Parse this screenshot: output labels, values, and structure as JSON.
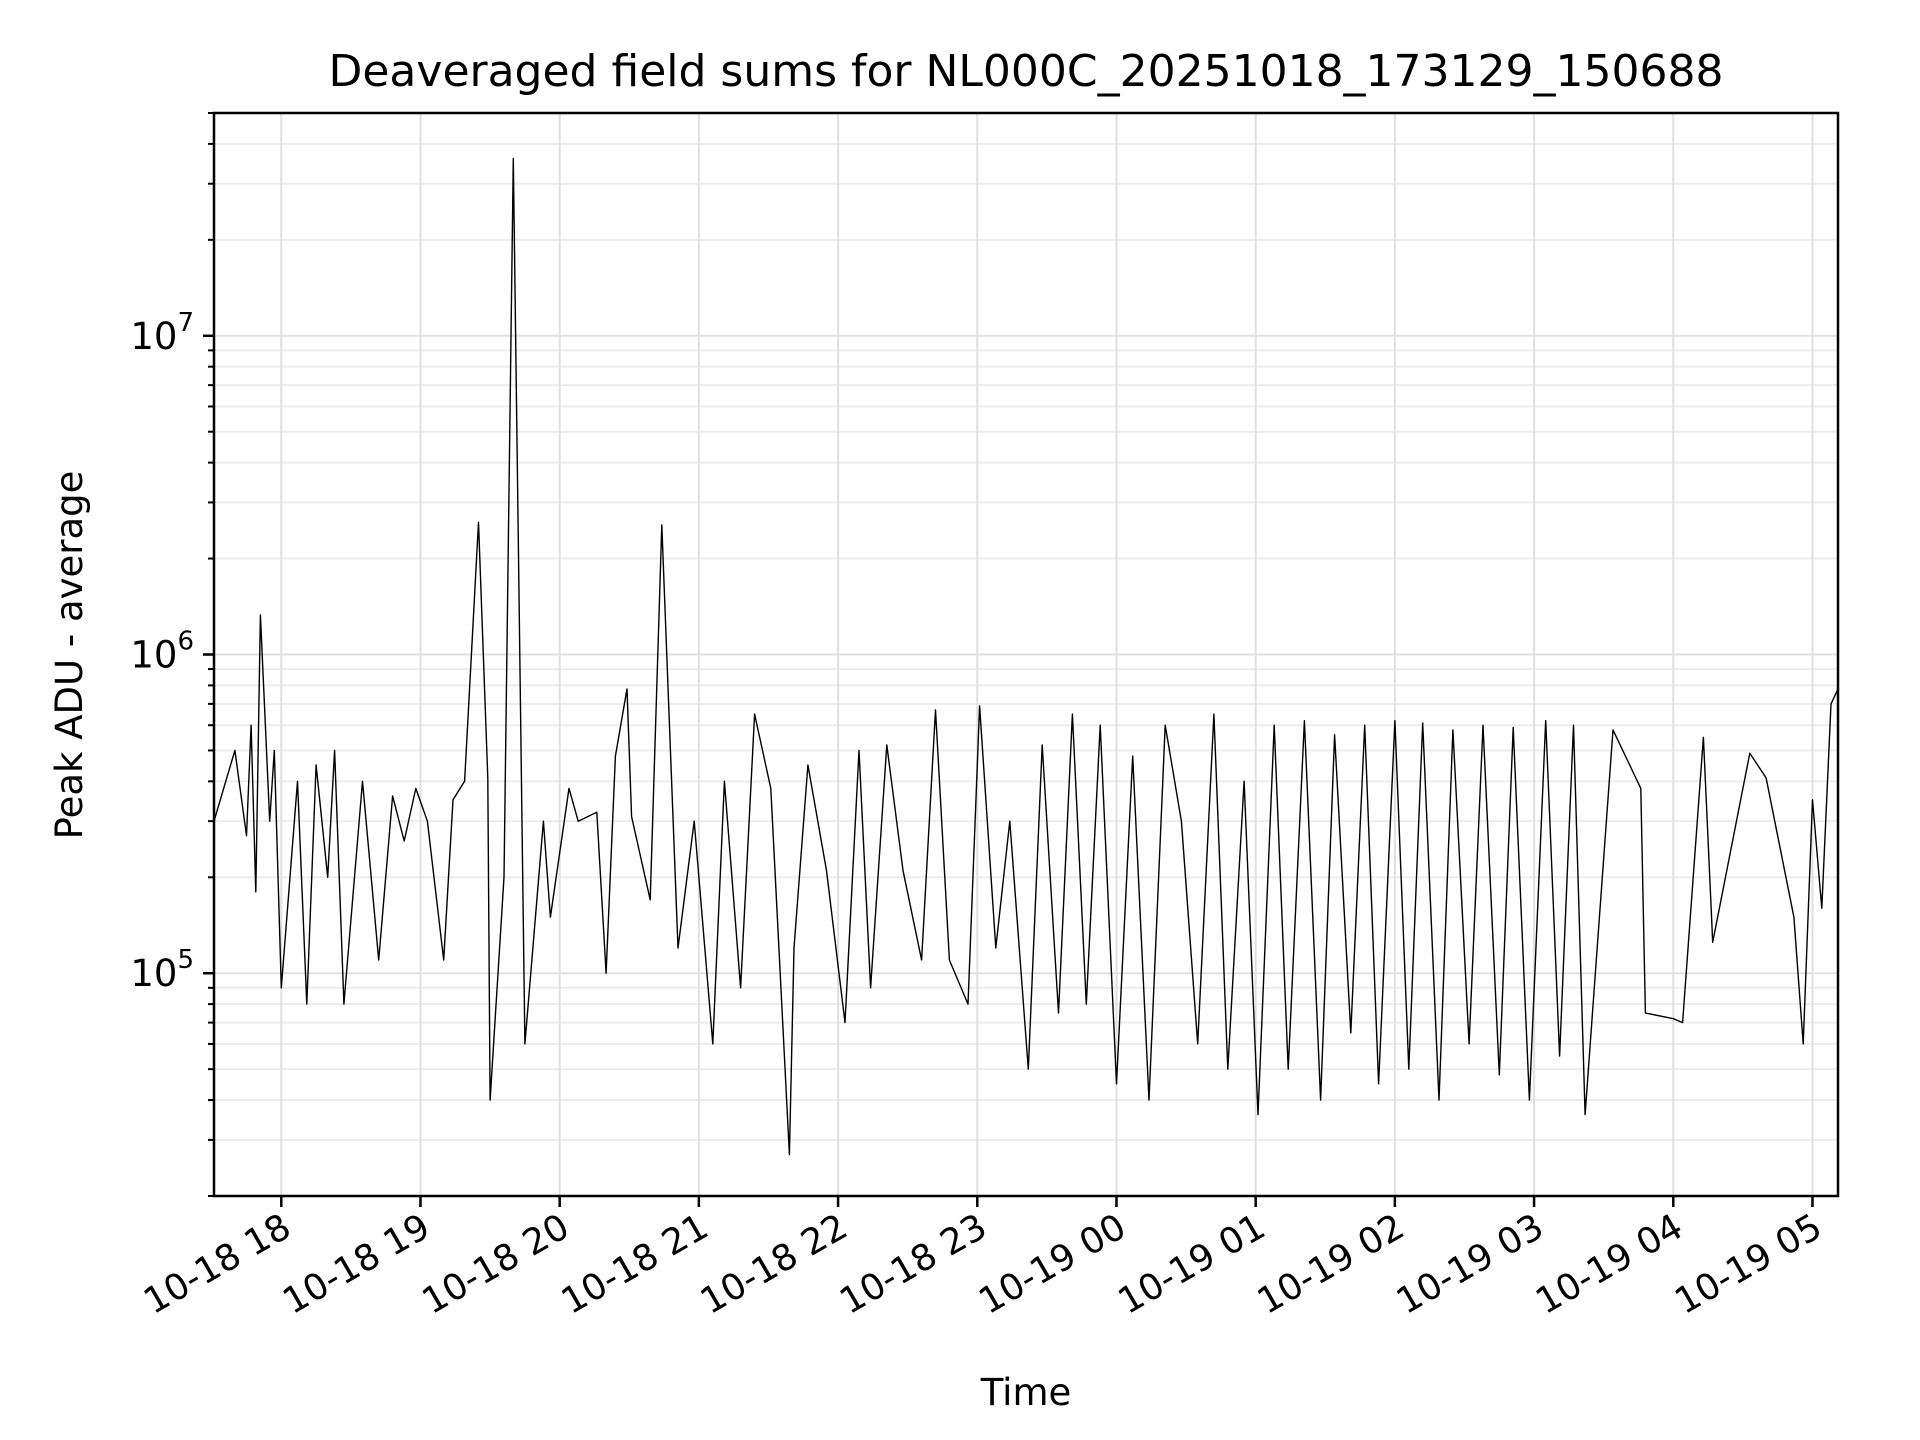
{
  "chart_data": {
    "type": "line",
    "title": "Deaveraged field sums for NL000C_20251018_173129_150688",
    "xlabel": "Time",
    "ylabel": "Peak ADU - average",
    "yscale": "log",
    "ylim": [
      20000,
      50000000
    ],
    "xlim": [
      "2025-10-18 17:31",
      "2025-10-19 05:11"
    ],
    "grid": true,
    "line_color": "#000000",
    "x_ticks": [
      {
        "label": "10-18 18",
        "value": "2025-10-18 18:00"
      },
      {
        "label": "10-18 19",
        "value": "2025-10-18 19:00"
      },
      {
        "label": "10-18 20",
        "value": "2025-10-18 20:00"
      },
      {
        "label": "10-18 21",
        "value": "2025-10-18 21:00"
      },
      {
        "label": "10-18 22",
        "value": "2025-10-18 22:00"
      },
      {
        "label": "10-18 23",
        "value": "2025-10-18 23:00"
      },
      {
        "label": "10-19 00",
        "value": "2025-10-19 00:00"
      },
      {
        "label": "10-19 01",
        "value": "2025-10-19 01:00"
      },
      {
        "label": "10-19 02",
        "value": "2025-10-19 02:00"
      },
      {
        "label": "10-19 03",
        "value": "2025-10-19 03:00"
      },
      {
        "label": "10-19 04",
        "value": "2025-10-19 04:00"
      },
      {
        "label": "10-19 05",
        "value": "2025-10-19 05:00"
      }
    ],
    "y_ticks": [
      {
        "base": "10",
        "exp": "5",
        "value": 100000
      },
      {
        "base": "10",
        "exp": "6",
        "value": 1000000
      },
      {
        "base": "10",
        "exp": "7",
        "value": 10000000
      }
    ],
    "series": [
      {
        "x": [
          "2025-10-18 17:31",
          "2025-10-18 17:40",
          "2025-10-18 17:45",
          "2025-10-18 17:47",
          "2025-10-18 17:49",
          "2025-10-18 17:51",
          "2025-10-18 17:55",
          "2025-10-18 17:57",
          "2025-10-18 18:00",
          "2025-10-18 18:07",
          "2025-10-18 18:11",
          "2025-10-18 18:15",
          "2025-10-18 18:20",
          "2025-10-18 18:23",
          "2025-10-18 18:27",
          "2025-10-18 18:35",
          "2025-10-18 18:42",
          "2025-10-18 18:48",
          "2025-10-18 18:53",
          "2025-10-18 18:58",
          "2025-10-18 19:03",
          "2025-10-18 19:10",
          "2025-10-18 19:14",
          "2025-10-18 19:19",
          "2025-10-18 19:25",
          "2025-10-18 19:29",
          "2025-10-18 19:30",
          "2025-10-18 19:36",
          "2025-10-18 19:40",
          "2025-10-18 19:45",
          "2025-10-18 19:53",
          "2025-10-18 19:56",
          "2025-10-18 20:04",
          "2025-10-18 20:08",
          "2025-10-18 20:16",
          "2025-10-18 20:20",
          "2025-10-18 20:24",
          "2025-10-18 20:29",
          "2025-10-18 20:31",
          "2025-10-18 20:39",
          "2025-10-18 20:44",
          "2025-10-18 20:51",
          "2025-10-18 20:58",
          "2025-10-18 21:06",
          "2025-10-18 21:11",
          "2025-10-18 21:18",
          "2025-10-18 21:24",
          "2025-10-18 21:31",
          "2025-10-18 21:39",
          "2025-10-18 21:41",
          "2025-10-18 21:47",
          "2025-10-18 21:55",
          "2025-10-18 22:03",
          "2025-10-18 22:09",
          "2025-10-18 22:14",
          "2025-10-18 22:21",
          "2025-10-18 22:28",
          "2025-10-18 22:36",
          "2025-10-18 22:42",
          "2025-10-18 22:48",
          "2025-10-18 22:56",
          "2025-10-18 23:01",
          "2025-10-18 23:08",
          "2025-10-18 23:14",
          "2025-10-18 23:22",
          "2025-10-18 23:28",
          "2025-10-18 23:35",
          "2025-10-18 23:41",
          "2025-10-18 23:47",
          "2025-10-18 23:53",
          "2025-10-19 00:00",
          "2025-10-19 00:07",
          "2025-10-19 00:14",
          "2025-10-19 00:21",
          "2025-10-19 00:28",
          "2025-10-19 00:35",
          "2025-10-19 00:42",
          "2025-10-19 00:48",
          "2025-10-19 00:55",
          "2025-10-19 01:01",
          "2025-10-19 01:08",
          "2025-10-19 01:14",
          "2025-10-19 01:21",
          "2025-10-19 01:28",
          "2025-10-19 01:34",
          "2025-10-19 01:41",
          "2025-10-19 01:47",
          "2025-10-19 01:53",
          "2025-10-19 02:00",
          "2025-10-19 02:06",
          "2025-10-19 02:12",
          "2025-10-19 02:19",
          "2025-10-19 02:25",
          "2025-10-19 02:32",
          "2025-10-19 02:38",
          "2025-10-19 02:45",
          "2025-10-19 02:51",
          "2025-10-19 02:58",
          "2025-10-19 03:05",
          "2025-10-19 03:11",
          "2025-10-19 03:17",
          "2025-10-19 03:22",
          "2025-10-19 03:34",
          "2025-10-19 03:46",
          "2025-10-19 03:48",
          "2025-10-19 04:00",
          "2025-10-19 04:04",
          "2025-10-19 04:13",
          "2025-10-19 04:17",
          "2025-10-19 04:33",
          "2025-10-19 04:40",
          "2025-10-19 04:52",
          "2025-10-19 04:56",
          "2025-10-19 05:00",
          "2025-10-19 05:04",
          "2025-10-19 05:08",
          "2025-10-19 05:11"
        ],
        "y": [
          300000,
          500000,
          270000,
          600000,
          180000,
          1330000,
          300000,
          500000,
          90000,
          400000,
          80000,
          450000,
          200000,
          500000,
          80000,
          400000,
          110000,
          360000,
          260000,
          380000,
          300000,
          110000,
          350000,
          400000,
          2600000,
          410000,
          40000,
          200000,
          36000000,
          60000,
          300000,
          150000,
          380000,
          300000,
          320000,
          100000,
          480000,
          780000,
          310000,
          170000,
          2550000,
          120000,
          300000,
          60000,
          400000,
          90000,
          650000,
          380000,
          27000,
          120000,
          450000,
          210000,
          70000,
          500000,
          90000,
          520000,
          210000,
          110000,
          670000,
          110000,
          80000,
          690000,
          120000,
          300000,
          50000,
          520000,
          75000,
          650000,
          80000,
          600000,
          45000,
          480000,
          40000,
          600000,
          300000,
          60000,
          650000,
          50000,
          400000,
          36000,
          600000,
          50000,
          620000,
          40000,
          560000,
          65000,
          600000,
          45000,
          620000,
          50000,
          610000,
          40000,
          580000,
          60000,
          600000,
          48000,
          590000,
          40000,
          620000,
          55000,
          600000,
          36000,
          580000,
          380000,
          75000,
          72000,
          70000,
          550000,
          125000,
          490000,
          410000,
          150000,
          60000,
          350000,
          160000,
          700000,
          780000
        ]
      }
    ]
  }
}
